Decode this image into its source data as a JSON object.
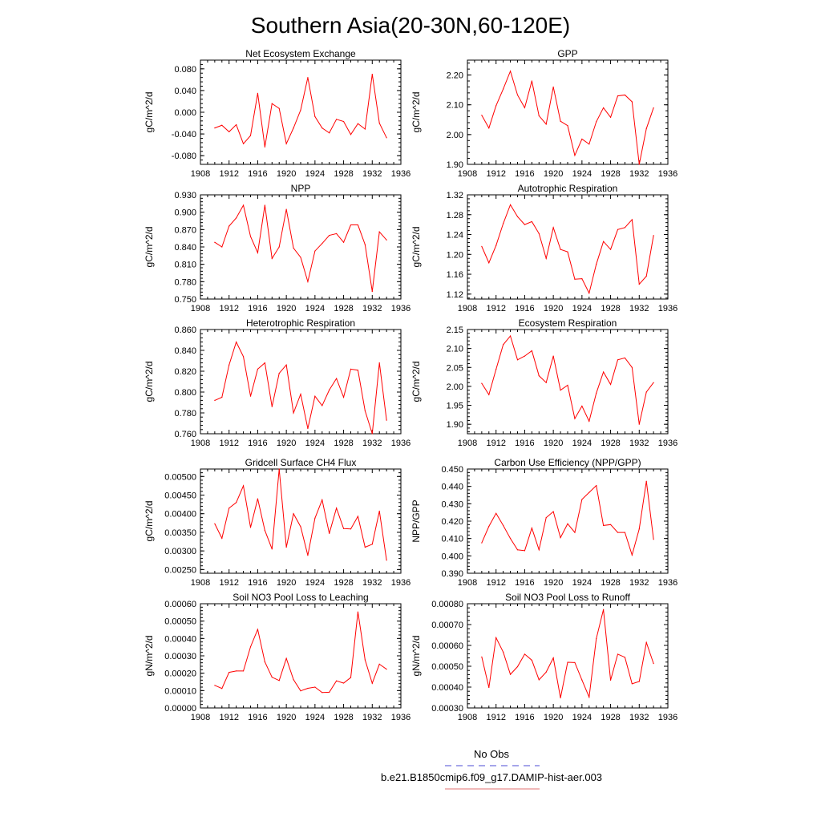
{
  "figure": {
    "title": "Southern Asia(20-30N,60-120E)",
    "line_color": "#ff0000",
    "obs_color": "#4b4bd6"
  },
  "legend": {
    "entries": [
      {
        "label": "No Obs",
        "color": "#4b4bd6",
        "style": "dashed"
      },
      {
        "label": "b.e21.B1850cmip6.f09_g17.DAMIP-hist-aer.003",
        "color": "#e07070",
        "style": "solid"
      }
    ]
  },
  "chart_data": [
    {
      "type": "line",
      "title": "Net Ecosystem Exchange",
      "ylabel": "gC/m^2/d",
      "xlim": [
        1908,
        1936
      ],
      "xticks": [
        1908,
        1912,
        1916,
        1920,
        1924,
        1928,
        1932,
        1936
      ],
      "ylim": [
        -0.096,
        0.096
      ],
      "yticks": [
        -0.08,
        -0.04,
        0.0,
        0.04,
        0.08
      ],
      "ytick_labels": [
        "-0.080",
        "-0.040",
        "0.000",
        "0.040",
        "0.080"
      ],
      "x": [
        1910,
        1911,
        1912,
        1913,
        1914,
        1915,
        1916,
        1917,
        1918,
        1919,
        1920,
        1921,
        1922,
        1923,
        1924,
        1925,
        1926,
        1927,
        1928,
        1929,
        1930,
        1931,
        1932,
        1933,
        1934
      ],
      "y": [
        -0.029,
        -0.024,
        -0.036,
        -0.023,
        -0.058,
        -0.043,
        0.035,
        -0.064,
        0.016,
        0.007,
        -0.058,
        -0.029,
        0.004,
        0.064,
        -0.008,
        -0.029,
        -0.038,
        -0.013,
        -0.017,
        -0.041,
        -0.021,
        -0.031,
        0.07,
        -0.02,
        -0.047
      ]
    },
    {
      "type": "line",
      "title": "GPP",
      "ylabel": "gC/m^2/d",
      "xlim": [
        1908,
        1936
      ],
      "xticks": [
        1908,
        1912,
        1916,
        1920,
        1924,
        1928,
        1932,
        1936
      ],
      "ylim": [
        1.9,
        2.25
      ],
      "yticks": [
        1.9,
        2.0,
        2.1,
        2.2
      ],
      "ytick_labels": [
        "1.90",
        "2.00",
        "2.10",
        "2.20"
      ],
      "x": [
        1910,
        1911,
        1912,
        1913,
        1914,
        1915,
        1916,
        1917,
        1918,
        1919,
        1920,
        1921,
        1922,
        1923,
        1924,
        1925,
        1926,
        1927,
        1928,
        1929,
        1930,
        1931,
        1932,
        1933,
        1934
      ],
      "y": [
        2.065,
        2.022,
        2.097,
        2.153,
        2.213,
        2.133,
        2.09,
        2.18,
        2.063,
        2.035,
        2.16,
        2.045,
        2.03,
        1.93,
        1.985,
        1.968,
        2.043,
        2.09,
        2.058,
        2.13,
        2.133,
        2.11,
        1.9,
        2.02,
        2.09
      ]
    },
    {
      "type": "line",
      "title": "NPP",
      "ylabel": "gC/m^2/d",
      "xlim": [
        1908,
        1936
      ],
      "xticks": [
        1908,
        1912,
        1916,
        1920,
        1924,
        1928,
        1932,
        1936
      ],
      "ylim": [
        0.75,
        0.93
      ],
      "yticks": [
        0.75,
        0.78,
        0.81,
        0.84,
        0.87,
        0.9,
        0.93
      ],
      "ytick_labels": [
        "0.750",
        "0.780",
        "0.810",
        "0.840",
        "0.870",
        "0.900",
        "0.930"
      ],
      "x": [
        1910,
        1911,
        1912,
        1913,
        1914,
        1915,
        1916,
        1917,
        1918,
        1919,
        1920,
        1921,
        1922,
        1923,
        1924,
        1925,
        1926,
        1927,
        1928,
        1929,
        1930,
        1931,
        1932,
        1933,
        1934
      ],
      "y": [
        0.848,
        0.84,
        0.876,
        0.89,
        0.912,
        0.858,
        0.83,
        0.912,
        0.82,
        0.84,
        0.905,
        0.838,
        0.822,
        0.78,
        0.833,
        0.846,
        0.86,
        0.863,
        0.848,
        0.878,
        0.878,
        0.844,
        0.763,
        0.866,
        0.852
      ]
    },
    {
      "type": "line",
      "title": "Autotrophic Respiration",
      "ylabel": "gC/m^2/d",
      "xlim": [
        1908,
        1936
      ],
      "xticks": [
        1908,
        1912,
        1916,
        1920,
        1924,
        1928,
        1932,
        1936
      ],
      "ylim": [
        1.11,
        1.32
      ],
      "yticks": [
        1.12,
        1.16,
        1.2,
        1.24,
        1.28,
        1.32
      ],
      "ytick_labels": [
        "1.12",
        "1.16",
        "1.20",
        "1.24",
        "1.28",
        "1.32"
      ],
      "x": [
        1910,
        1911,
        1912,
        1913,
        1914,
        1915,
        1916,
        1917,
        1918,
        1919,
        1920,
        1921,
        1922,
        1923,
        1924,
        1925,
        1926,
        1927,
        1928,
        1929,
        1930,
        1931,
        1932,
        1933,
        1934
      ],
      "y": [
        1.216,
        1.183,
        1.218,
        1.262,
        1.3,
        1.276,
        1.26,
        1.266,
        1.242,
        1.192,
        1.254,
        1.21,
        1.205,
        1.15,
        1.151,
        1.122,
        1.18,
        1.226,
        1.21,
        1.25,
        1.254,
        1.27,
        1.14,
        1.156,
        1.238
      ]
    },
    {
      "type": "line",
      "title": "Heterotrophic Respiration",
      "ylabel": "gC/m^2/d",
      "xlim": [
        1908,
        1936
      ],
      "xticks": [
        1908,
        1912,
        1916,
        1920,
        1924,
        1928,
        1932,
        1936
      ],
      "ylim": [
        0.76,
        0.86
      ],
      "yticks": [
        0.76,
        0.78,
        0.8,
        0.82,
        0.84,
        0.86
      ],
      "ytick_labels": [
        "0.760",
        "0.780",
        "0.800",
        "0.820",
        "0.840",
        "0.860"
      ],
      "x": [
        1910,
        1911,
        1912,
        1913,
        1914,
        1915,
        1916,
        1917,
        1918,
        1919,
        1920,
        1921,
        1922,
        1923,
        1924,
        1925,
        1926,
        1927,
        1928,
        1929,
        1930,
        1931,
        1932,
        1933,
        1934
      ],
      "y": [
        0.792,
        0.795,
        0.826,
        0.848,
        0.834,
        0.796,
        0.822,
        0.828,
        0.786,
        0.818,
        0.826,
        0.78,
        0.798,
        0.765,
        0.796,
        0.787,
        0.802,
        0.813,
        0.795,
        0.822,
        0.821,
        0.782,
        0.76,
        0.828,
        0.773
      ]
    },
    {
      "type": "line",
      "title": "Ecosystem Respiration",
      "ylabel": "gC/m^2/d",
      "xlim": [
        1908,
        1936
      ],
      "xticks": [
        1908,
        1912,
        1916,
        1920,
        1924,
        1928,
        1932,
        1936
      ],
      "ylim": [
        1.875,
        2.15
      ],
      "yticks": [
        1.9,
        1.95,
        2.0,
        2.05,
        2.1,
        2.15
      ],
      "ytick_labels": [
        "1.90",
        "1.95",
        "2.00",
        "2.05",
        "2.10",
        "2.15"
      ],
      "x": [
        1910,
        1911,
        1912,
        1913,
        1914,
        1915,
        1916,
        1917,
        1918,
        1919,
        1920,
        1921,
        1922,
        1923,
        1924,
        1925,
        1926,
        1927,
        1928,
        1929,
        1930,
        1931,
        1932,
        1933,
        1934
      ],
      "y": [
        2.008,
        1.978,
        2.045,
        2.11,
        2.133,
        2.07,
        2.08,
        2.094,
        2.028,
        2.01,
        2.08,
        1.99,
        2.003,
        1.915,
        1.948,
        1.908,
        1.982,
        2.038,
        2.005,
        2.07,
        2.075,
        2.05,
        1.9,
        1.985,
        2.01
      ]
    },
    {
      "type": "line",
      "title": "Gridcell Surface CH4 Flux",
      "ylabel": "gC/m^2/d",
      "xlim": [
        1908,
        1936
      ],
      "xticks": [
        1908,
        1912,
        1916,
        1920,
        1924,
        1928,
        1932,
        1936
      ],
      "ylim": [
        0.0024,
        0.0052
      ],
      "yticks": [
        0.0025,
        0.003,
        0.0035,
        0.004,
        0.0045,
        0.005
      ],
      "ytick_labels": [
        "0.00250",
        "0.00300",
        "0.00350",
        "0.00400",
        "0.00450",
        "0.00500"
      ],
      "x": [
        1910,
        1911,
        1912,
        1913,
        1914,
        1915,
        1916,
        1917,
        1918,
        1919,
        1920,
        1921,
        1922,
        1923,
        1924,
        1925,
        1926,
        1927,
        1928,
        1929,
        1930,
        1931,
        1932,
        1933,
        1934
      ],
      "y": [
        0.00373,
        0.00334,
        0.00415,
        0.0043,
        0.00475,
        0.00363,
        0.0044,
        0.00355,
        0.00305,
        0.0052,
        0.0031,
        0.004,
        0.00365,
        0.00288,
        0.00388,
        0.00437,
        0.00347,
        0.00415,
        0.0036,
        0.00359,
        0.00393,
        0.0031,
        0.00318,
        0.00407,
        0.00275
      ]
    },
    {
      "type": "line",
      "title": "Carbon Use Efficiency (NPP/GPP)",
      "ylabel": "NPP/GPP",
      "xlim": [
        1908,
        1936
      ],
      "xticks": [
        1908,
        1912,
        1916,
        1920,
        1924,
        1928,
        1932,
        1936
      ],
      "ylim": [
        0.39,
        0.45
      ],
      "yticks": [
        0.39,
        0.4,
        0.41,
        0.42,
        0.43,
        0.44,
        0.45
      ],
      "ytick_labels": [
        "0.390",
        "0.400",
        "0.410",
        "0.420",
        "0.430",
        "0.440",
        "0.450"
      ],
      "x": [
        1910,
        1911,
        1912,
        1913,
        1914,
        1915,
        1916,
        1917,
        1918,
        1919,
        1920,
        1921,
        1922,
        1923,
        1924,
        1925,
        1926,
        1927,
        1928,
        1929,
        1930,
        1931,
        1932,
        1933,
        1934
      ],
      "y": [
        0.4075,
        0.417,
        0.4245,
        0.4175,
        0.41,
        0.4035,
        0.403,
        0.416,
        0.4035,
        0.422,
        0.4255,
        0.4105,
        0.4185,
        0.4135,
        0.4325,
        0.4365,
        0.4405,
        0.4175,
        0.418,
        0.4135,
        0.4135,
        0.4005,
        0.4155,
        0.443,
        0.4095
      ]
    },
    {
      "type": "line",
      "title": "Soil NO3 Pool Loss to Leaching",
      "ylabel": "gN/m^2/d",
      "xlim": [
        1908,
        1936
      ],
      "xticks": [
        1908,
        1912,
        1916,
        1920,
        1924,
        1928,
        1932,
        1936
      ],
      "ylim": [
        0.0,
        0.0006
      ],
      "yticks": [
        0.0,
        0.0001,
        0.0002,
        0.0003,
        0.0004,
        0.0005,
        0.0006
      ],
      "ytick_labels": [
        "0.00000",
        "0.00010",
        "0.00020",
        "0.00030",
        "0.00040",
        "0.00050",
        "0.00060"
      ],
      "x": [
        1910,
        1911,
        1912,
        1913,
        1914,
        1915,
        1916,
        1917,
        1918,
        1919,
        1920,
        1921,
        1922,
        1923,
        1924,
        1925,
        1926,
        1927,
        1928,
        1929,
        1930,
        1931,
        1932,
        1933,
        1934
      ],
      "y": [
        0.00013,
        0.000112,
        0.000205,
        0.000213,
        0.000213,
        0.000352,
        0.000452,
        0.000265,
        0.000177,
        0.000158,
        0.000285,
        0.000163,
        9.83e-05,
        0.000113,
        0.00012,
        8.88e-05,
        9.08e-05,
        0.000156,
        0.000143,
        0.000175,
        0.000553,
        0.000277,
        0.000142,
        0.000252,
        0.000223
      ]
    },
    {
      "type": "line",
      "title": "Soil NO3 Pool Loss to Runoff",
      "ylabel": "gN/m^2/d",
      "xlim": [
        1908,
        1936
      ],
      "xticks": [
        1908,
        1912,
        1916,
        1920,
        1924,
        1928,
        1932,
        1936
      ],
      "ylim": [
        0.0003,
        0.0008
      ],
      "yticks": [
        0.0003,
        0.0004,
        0.0005,
        0.0006,
        0.0007,
        0.0008
      ],
      "ytick_labels": [
        "0.00030",
        "0.00040",
        "0.00050",
        "0.00060",
        "0.00070",
        "0.00080"
      ],
      "x": [
        1910,
        1911,
        1912,
        1913,
        1914,
        1915,
        1916,
        1917,
        1918,
        1919,
        1920,
        1921,
        1922,
        1923,
        1924,
        1925,
        1926,
        1927,
        1928,
        1929,
        1930,
        1931,
        1932,
        1933,
        1934
      ],
      "y": [
        0.000545,
        0.000398,
        0.000637,
        0.000568,
        0.000461,
        0.000498,
        0.000558,
        0.000529,
        0.000435,
        0.000472,
        0.00054,
        0.000348,
        0.000519,
        0.000518,
        0.000434,
        0.000352,
        0.000632,
        0.000772,
        0.000433,
        0.000558,
        0.000543,
        0.000416,
        0.000427,
        0.000614,
        0.000513
      ]
    }
  ]
}
